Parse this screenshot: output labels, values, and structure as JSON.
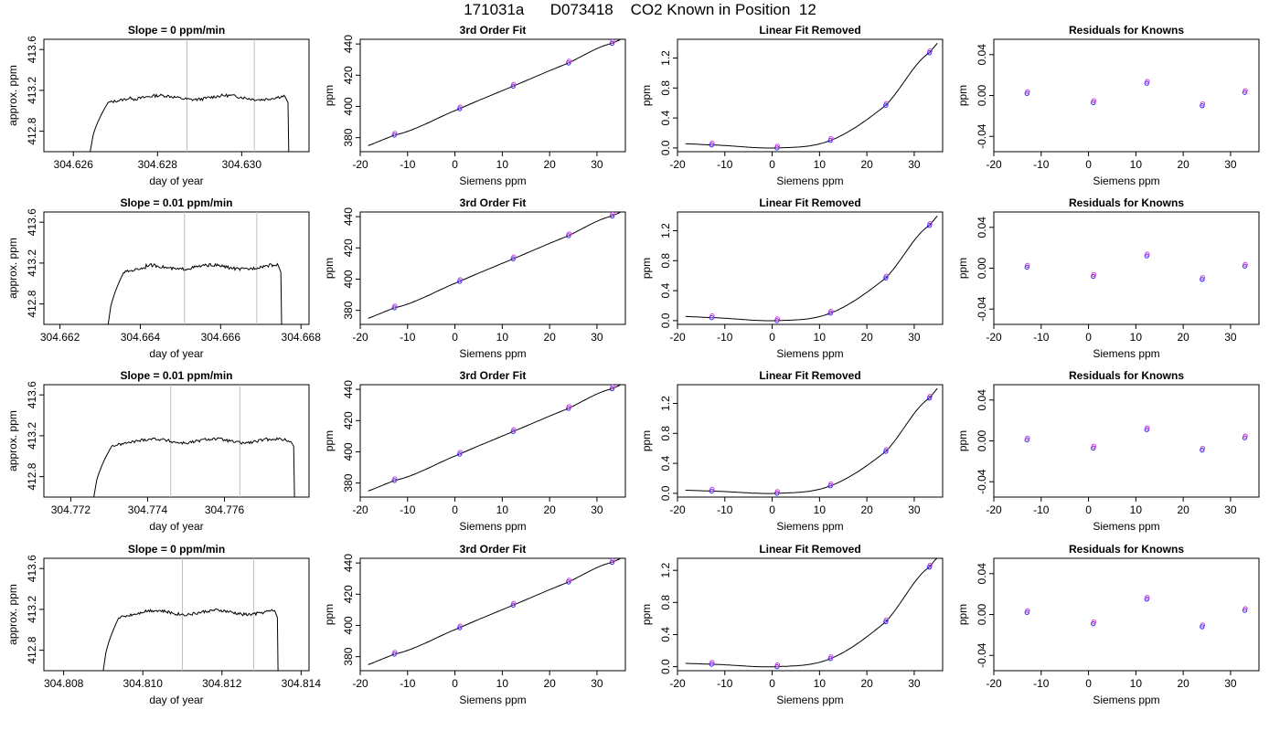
{
  "header": {
    "title": "171031a      D073418    CO2 Known in Position  12"
  },
  "colors": {
    "axis": "#000000",
    "fit_line": "#000000",
    "marker_blue": "#2a2aff",
    "marker_magenta": "#d040d0",
    "cursor_line": "#bfbfbf"
  },
  "chart_data": [
    {
      "type": "line",
      "row": 0,
      "col": 0,
      "title": "Slope =  0  ppm/min",
      "xlabel": "day of year",
      "ylabel": "approx. ppm",
      "xlim": [
        304.6253,
        304.6316
      ],
      "ylim": [
        412.6,
        413.7
      ],
      "xticks": [
        "304.626",
        "304.628",
        "304.630"
      ],
      "yticks": [
        "412.8",
        "413.2",
        "413.6"
      ],
      "markers": [
        304.6287,
        304.6303
      ],
      "trace": {
        "start": 304.6264,
        "end": 304.6311,
        "plateau": 413.13
      }
    },
    {
      "type": "scatter",
      "row": 0,
      "col": 1,
      "title": "3rd Order Fit",
      "xlabel": "Siemens ppm",
      "ylabel": "ppm",
      "xlim": [
        -20,
        36
      ],
      "ylim": [
        371,
        443
      ],
      "xticks": [
        "-20",
        "-10",
        "0",
        "10",
        "20",
        "30"
      ],
      "yticks": [
        "380",
        "400",
        "420",
        "440"
      ],
      "points": [
        [
          -12.8,
          381.6
        ],
        [
          1,
          398.5
        ],
        [
          12.3,
          413
        ],
        [
          24,
          427.8
        ],
        [
          33.2,
          440.4
        ]
      ]
    },
    {
      "type": "scatter",
      "row": 0,
      "col": 2,
      "title": "Linear Fit Removed",
      "xlabel": "Siemens ppm",
      "ylabel": "ppm",
      "xlim": [
        -20,
        36
      ],
      "ylim": [
        -0.05,
        1.45
      ],
      "xticks": [
        "-20",
        "-10",
        "0",
        "10",
        "20",
        "30"
      ],
      "yticks": [
        "0.0",
        "0.4",
        "0.8",
        "1.2"
      ],
      "points": [
        [
          -12.8,
          0.04
        ],
        [
          1,
          0.0
        ],
        [
          12.3,
          0.1
        ],
        [
          24,
          0.57
        ],
        [
          33.2,
          1.27
        ]
      ]
    },
    {
      "type": "scatter",
      "row": 0,
      "col": 3,
      "title": "Residuals for Knowns",
      "xlabel": "Siemens ppm",
      "ylabel": "ppm",
      "xlim": [
        -20,
        36
      ],
      "ylim": [
        -0.055,
        0.055
      ],
      "xticks": [
        "-20",
        "-10",
        "0",
        "10",
        "20",
        "30"
      ],
      "yticks": [
        "-0.04",
        "0.00",
        "0.04"
      ],
      "points": [
        [
          -13,
          0.002
        ],
        [
          1,
          -0.007
        ],
        [
          12.3,
          0.012
        ],
        [
          24,
          -0.01
        ],
        [
          33,
          0.003
        ]
      ]
    },
    {
      "type": "line",
      "row": 1,
      "col": 0,
      "title": "Slope =  0.01  ppm/min",
      "xlabel": "day of year",
      "ylabel": "approx. ppm",
      "xlim": [
        304.6616,
        304.6682
      ],
      "ylim": [
        412.6,
        413.7
      ],
      "xticks": [
        "304.662",
        "304.664",
        "304.666",
        "304.668"
      ],
      "yticks": [
        "412.8",
        "413.2",
        "413.6"
      ],
      "markers": [
        304.6651,
        304.6669
      ],
      "trace": {
        "start": 304.6632,
        "end": 304.6675,
        "plateau": 413.16
      }
    },
    {
      "type": "scatter",
      "row": 1,
      "col": 1,
      "title": "3rd Order Fit",
      "xlabel": "Siemens ppm",
      "ylabel": "ppm",
      "xlim": [
        -20,
        36
      ],
      "ylim": [
        371,
        443
      ],
      "xticks": [
        "-20",
        "-10",
        "0",
        "10",
        "20",
        "30"
      ],
      "yticks": [
        "380",
        "400",
        "420",
        "440"
      ],
      "points": [
        [
          -12.8,
          381.6
        ],
        [
          1,
          398.5
        ],
        [
          12.3,
          413
        ],
        [
          24,
          427.8
        ],
        [
          33.2,
          440.4
        ]
      ]
    },
    {
      "type": "scatter",
      "row": 1,
      "col": 2,
      "title": "Linear Fit Removed",
      "xlabel": "Siemens ppm",
      "ylabel": "ppm",
      "xlim": [
        -20,
        36
      ],
      "ylim": [
        -0.05,
        1.45
      ],
      "xticks": [
        "-20",
        "-10",
        "0",
        "10",
        "20",
        "30"
      ],
      "yticks": [
        "0.0",
        "0.4",
        "0.8",
        "1.2"
      ],
      "points": [
        [
          -12.8,
          0.04
        ],
        [
          1,
          0.0
        ],
        [
          12.3,
          0.1
        ],
        [
          24,
          0.57
        ],
        [
          33.2,
          1.27
        ]
      ]
    },
    {
      "type": "scatter",
      "row": 1,
      "col": 3,
      "title": "Residuals for Knowns",
      "xlabel": "Siemens ppm",
      "ylabel": "ppm",
      "xlim": [
        -20,
        36
      ],
      "ylim": [
        -0.055,
        0.055
      ],
      "xticks": [
        "-20",
        "-10",
        "0",
        "10",
        "20",
        "30"
      ],
      "yticks": [
        "-0.04",
        "0.00",
        "0.04"
      ],
      "points": [
        [
          -13,
          0.001
        ],
        [
          1,
          -0.008
        ],
        [
          12.3,
          0.012
        ],
        [
          24,
          -0.011
        ],
        [
          33,
          0.002
        ]
      ]
    },
    {
      "type": "line",
      "row": 2,
      "col": 0,
      "title": "Slope =  0.01  ppm/min",
      "xlabel": "day of year",
      "ylabel": "approx. ppm",
      "xlim": [
        304.7713,
        304.7782
      ],
      "ylim": [
        412.6,
        413.7
      ],
      "xticks": [
        "304.772",
        "304.774",
        "304.776"
      ],
      "yticks": [
        "412.8",
        "413.2",
        "413.6"
      ],
      "markers": [
        304.7746,
        304.7764
      ],
      "trace": {
        "start": 304.7726,
        "end": 304.7778,
        "plateau": 413.15
      }
    },
    {
      "type": "scatter",
      "row": 2,
      "col": 1,
      "title": "3rd Order Fit",
      "xlabel": "Siemens ppm",
      "ylabel": "ppm",
      "xlim": [
        -20,
        36
      ],
      "ylim": [
        371,
        443
      ],
      "xticks": [
        "-20",
        "-10",
        "0",
        "10",
        "20",
        "30"
      ],
      "yticks": [
        "380",
        "400",
        "420",
        "440"
      ],
      "points": [
        [
          -12.8,
          381.6
        ],
        [
          1,
          398.5
        ],
        [
          12.3,
          413
        ],
        [
          24,
          427.8
        ],
        [
          33.2,
          440.4
        ]
      ]
    },
    {
      "type": "scatter",
      "row": 2,
      "col": 2,
      "title": "Linear Fit Removed",
      "xlabel": "Siemens ppm",
      "ylabel": "ppm",
      "xlim": [
        -20,
        36
      ],
      "ylim": [
        -0.05,
        1.45
      ],
      "xticks": [
        "-20",
        "-10",
        "0",
        "10",
        "20",
        "30"
      ],
      "yticks": [
        "0.0",
        "0.4",
        "0.8",
        "1.2"
      ],
      "points": [
        [
          -12.8,
          0.03
        ],
        [
          1,
          0.0
        ],
        [
          12.3,
          0.1
        ],
        [
          24,
          0.56
        ],
        [
          33.2,
          1.27
        ]
      ]
    },
    {
      "type": "scatter",
      "row": 2,
      "col": 3,
      "title": "Residuals for Knowns",
      "xlabel": "Siemens ppm",
      "ylabel": "ppm",
      "xlim": [
        -20,
        36
      ],
      "ylim": [
        -0.055,
        0.055
      ],
      "xticks": [
        "-20",
        "-10",
        "0",
        "10",
        "20",
        "30"
      ],
      "yticks": [
        "-0.04",
        "0.00",
        "0.04"
      ],
      "points": [
        [
          -13,
          0.001
        ],
        [
          1,
          -0.007
        ],
        [
          12.3,
          0.011
        ],
        [
          24,
          -0.009
        ],
        [
          33,
          0.003
        ]
      ]
    },
    {
      "type": "line",
      "row": 3,
      "col": 0,
      "title": "Slope =  0  ppm/min",
      "xlabel": "day of year",
      "ylabel": "approx. ppm",
      "xlim": [
        304.8075,
        304.8142
      ],
      "ylim": [
        412.6,
        413.7
      ],
      "xticks": [
        "304.808",
        "304.810",
        "304.812",
        "304.814"
      ],
      "yticks": [
        "412.8",
        "413.2",
        "413.6"
      ],
      "markers": [
        304.811,
        304.8128
      ],
      "trace": {
        "start": 304.809,
        "end": 304.8134,
        "plateau": 413.17
      }
    },
    {
      "type": "scatter",
      "row": 3,
      "col": 1,
      "title": "3rd Order Fit",
      "xlabel": "Siemens ppm",
      "ylabel": "ppm",
      "xlim": [
        -20,
        36
      ],
      "ylim": [
        371,
        443
      ],
      "xticks": [
        "-20",
        "-10",
        "0",
        "10",
        "20",
        "30"
      ],
      "yticks": [
        "380",
        "400",
        "420",
        "440"
      ],
      "points": [
        [
          -12.8,
          381.6
        ],
        [
          1,
          398.5
        ],
        [
          12.3,
          413
        ],
        [
          24,
          427.8
        ],
        [
          33.2,
          440.4
        ]
      ]
    },
    {
      "type": "scatter",
      "row": 3,
      "col": 2,
      "title": "Linear Fit Removed",
      "xlabel": "Siemens ppm",
      "ylabel": "ppm",
      "xlim": [
        -20,
        36
      ],
      "ylim": [
        -0.05,
        1.35
      ],
      "xticks": [
        "-20",
        "-10",
        "0",
        "10",
        "20",
        "30"
      ],
      "yticks": [
        "0.0",
        "0.4",
        "0.8",
        "1.2"
      ],
      "points": [
        [
          -12.8,
          0.03
        ],
        [
          1,
          0.0
        ],
        [
          12.3,
          0.1
        ],
        [
          24,
          0.56
        ],
        [
          33.2,
          1.24
        ]
      ]
    },
    {
      "type": "scatter",
      "row": 3,
      "col": 3,
      "title": "Residuals for Knowns",
      "xlabel": "Siemens ppm",
      "ylabel": "ppm",
      "xlim": [
        -20,
        36
      ],
      "ylim": [
        -0.055,
        0.055
      ],
      "xticks": [
        "-20",
        "-10",
        "0",
        "10",
        "20",
        "30"
      ],
      "yticks": [
        "-0.04",
        "0.00",
        "0.04"
      ],
      "points": [
        [
          -13,
          0.002
        ],
        [
          1,
          -0.009
        ],
        [
          12.3,
          0.015
        ],
        [
          24,
          -0.012
        ],
        [
          33,
          0.004
        ]
      ]
    }
  ]
}
